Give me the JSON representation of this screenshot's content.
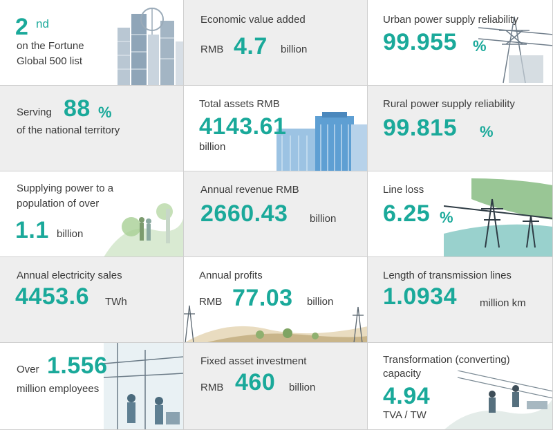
{
  "cells": {
    "fortune": {
      "rank": "2",
      "suffix": "nd",
      "line1": "on the Fortune",
      "line2": "Global 500 list"
    },
    "eva": {
      "label": "Economic value added",
      "prefix": "RMB",
      "value": "4.7",
      "unit": "billion"
    },
    "urban": {
      "label": "Urban power supply reliability",
      "value": "99.955",
      "unit": "%"
    },
    "territory": {
      "prefix": "Serving",
      "value": "88",
      "unit": "%",
      "line2": "of the national territory"
    },
    "assets": {
      "label": "Total assets  RMB",
      "value": "4143.61",
      "unit": "billion"
    },
    "rural": {
      "label": "Rural power supply reliability",
      "value": "99.815",
      "unit": "%"
    },
    "population": {
      "line1": "Supplying power to a",
      "line2": "population of over",
      "value": "1.1",
      "unit": "billion"
    },
    "revenue": {
      "label": "Annual revenue  RMB",
      "value": "2660.43",
      "unit": "billion"
    },
    "lineloss": {
      "label": "Line loss",
      "value": "6.25",
      "unit": "%"
    },
    "sales": {
      "label": "Annual electricity sales",
      "value": "4453.6",
      "unit": "TWh"
    },
    "profits": {
      "label": "Annual profits",
      "prefix": "RMB",
      "value": "77.03",
      "unit": "billion"
    },
    "transmission": {
      "label": "Length of transmission lines",
      "value": "1.0934",
      "unit": "million km"
    },
    "employees": {
      "prefix": "Over",
      "value": "1.556",
      "line2": "million employees"
    },
    "investment": {
      "label": "Fixed asset investment",
      "prefix": "RMB",
      "value": "460",
      "unit": "billion"
    },
    "transformation": {
      "line1": "Transformation (converting)",
      "line2": "capacity",
      "value": "4.94",
      "unit": "TVA / TW"
    }
  },
  "colors": {
    "accent": "#1aa99a",
    "text": "#3a3a3a",
    "gray_cell": "#eeeeee",
    "border": "#cfcfcf"
  }
}
